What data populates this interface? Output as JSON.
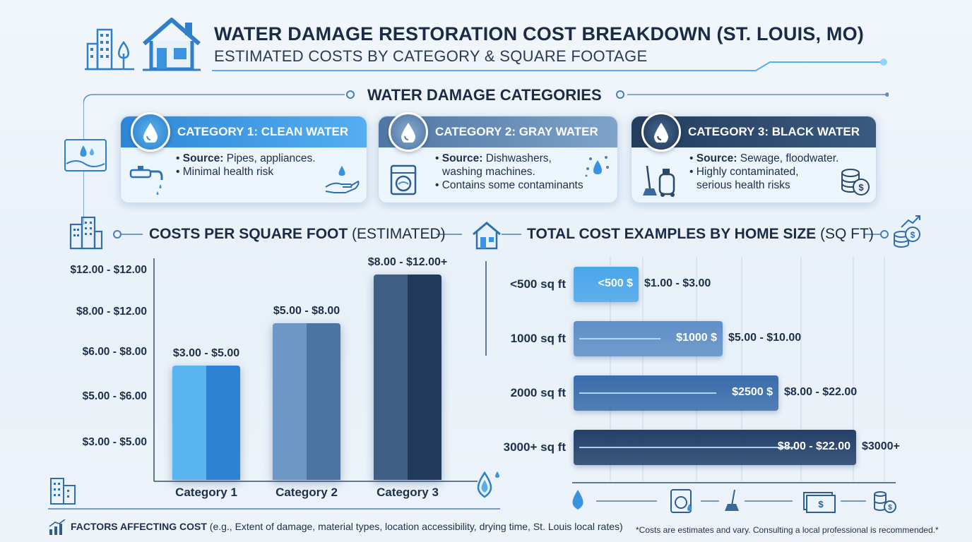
{
  "header": {
    "title": "WATER DAMAGE RESTORATION COST BREAKDOWN (ST. LOUIS, MO)",
    "subtitle": "ESTIMATED COSTS BY CATEGORY & SQUARE FOOTAGE"
  },
  "categories_section": {
    "heading": "WATER DAMAGE CATEGORIES",
    "cards": [
      {
        "title": "CATEGORY 1: CLEAN WATER",
        "lines": [
          {
            "bold": "Source:",
            "text": " Pipes, appliances."
          },
          {
            "bold": "",
            "text": "Minimal health risk"
          }
        ],
        "icons": [
          "faucet-icon",
          "hand-water-icon"
        ],
        "color": "#3b8ee0"
      },
      {
        "title": "CATEGORY 2: GRAY WATER",
        "lines": [
          {
            "bold": "Source:",
            "text": " Dishwashers,"
          },
          {
            "bold": "",
            "text": "washing machines."
          },
          {
            "bold": "",
            "text": "Contains some contaminants"
          }
        ],
        "icons": [
          "washing-machine-icon",
          "water-drops-icon"
        ],
        "color": "#5b7fa8"
      },
      {
        "title": "CATEGORY 3: BLACK WATER",
        "lines": [
          {
            "bold": "Source:",
            "text": " Sewage, floodwater."
          },
          {
            "bold": "",
            "text": "Highly contaminated,"
          },
          {
            "bold": "",
            "text": "serious health risks"
          }
        ],
        "icons": [
          "cleaning-equipment-icon",
          "coins-icon"
        ],
        "color": "#2c4868"
      }
    ]
  },
  "left_chart_heading": {
    "bold": "COSTS PER SQUARE FOOT",
    "light": " (ESTIMATED)"
  },
  "right_chart_heading": {
    "bold": "TOTAL COST EXAMPLES BY HOME SIZE",
    "light": " (SQ FT)"
  },
  "chart_data": [
    {
      "type": "bar",
      "title": "COSTS PER SQUARE FOOT (ESTIMATED)",
      "categories": [
        "Category 1",
        "Category 2",
        "Category 3"
      ],
      "value_labels": [
        "$3.00 - $5.00",
        "$5.00 - $8.00",
        "$8.00 - $12.00+"
      ],
      "ytick_labels": [
        "$12.00 - $12.00",
        "$8.00 - $12.00",
        "$6.00 - $8.00",
        "$5.00 - $6.00",
        "$3.00 - $5.00"
      ],
      "values_fraction_of_axis": [
        0.54,
        0.74,
        0.97
      ],
      "colors": [
        "#3d96e0",
        "#5c88b8",
        "#2f4c6e"
      ]
    },
    {
      "type": "bar",
      "orientation": "horizontal",
      "title": "TOTAL COST EXAMPLES BY HOME SIZE (SQ FT)",
      "categories": [
        "<500 sq ft",
        "1000 sq ft",
        "2000 sq ft",
        "3000+ sq ft"
      ],
      "bar_labels": [
        "<500 $",
        "$1000 $",
        "$2500 $",
        "$8.00 - $22.00"
      ],
      "range_labels": [
        "$1.00 - $3.00",
        "$5.00 - $10.00",
        "$8.00 - $22.00",
        "$3000+"
      ],
      "values_fraction_of_axis": [
        0.21,
        0.48,
        0.66,
        0.91
      ],
      "colors": [
        "#4aa6ea",
        "#5f8fc6",
        "#3a6cab",
        "#24406a"
      ]
    }
  ],
  "footer": {
    "factors_bold": "FACTORS AFFECTING COST",
    "factors_text": " (e.g., Extent of damage, material types, location accessibility, drying time, St. Louis local rates)",
    "disclaimer": "*Costs are estimates and vary. Consulting a local professional is recommended.*"
  }
}
